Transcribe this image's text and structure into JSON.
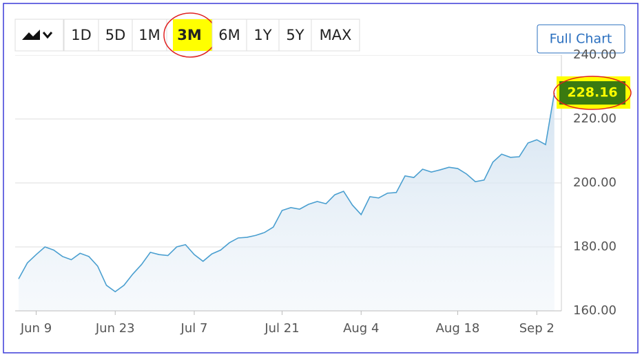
{
  "toolbar": {
    "ranges": [
      "1D",
      "5D",
      "1M",
      "3M",
      "6M",
      "1Y",
      "5Y",
      "MAX"
    ],
    "full_chart": "Full Chart"
  },
  "chart_data": {
    "type": "area",
    "categories": [
      null,
      null,
      "Jun 9",
      null,
      null,
      null,
      null,
      null,
      null,
      null,
      null,
      "Jun 23",
      null,
      null,
      null,
      null,
      null,
      null,
      null,
      null,
      "Jul 7",
      null,
      null,
      null,
      null,
      null,
      null,
      null,
      null,
      null,
      "Jul 21",
      null,
      null,
      null,
      null,
      null,
      null,
      null,
      null,
      "Aug 4",
      null,
      null,
      null,
      null,
      null,
      null,
      null,
      null,
      null,
      null,
      "Aug 18",
      null,
      null,
      null,
      null,
      null,
      null,
      null,
      null,
      "Sep 2",
      null,
      null
    ],
    "values": [
      170,
      175,
      177.6,
      180,
      179,
      177,
      176,
      178,
      177,
      174,
      168,
      166,
      168,
      171.5,
      174.5,
      178.3,
      177.6,
      177.3,
      180,
      180.7,
      177.6,
      175.5,
      177.8,
      179,
      181.3,
      182.8,
      183,
      183.6,
      184.5,
      186.2,
      191.4,
      192.3,
      191.8,
      193.3,
      194.2,
      193.5,
      196.3,
      197.4,
      193.1,
      190.1,
      195.7,
      195.3,
      196.8,
      197,
      202.2,
      201.7,
      204.3,
      203.4,
      204.1,
      204.9,
      204.5,
      202.8,
      200.4,
      200.9,
      206.5,
      209,
      208,
      208.2,
      212.5,
      213.5,
      212,
      228.16
    ],
    "color": "#4a9fd0",
    "ylim": [
      160,
      240
    ],
    "yticks": [
      {
        "value": 160,
        "label": "160.00"
      },
      {
        "value": 180,
        "label": "180.00"
      },
      {
        "value": 200,
        "label": "200.00"
      },
      {
        "value": 220,
        "label": "220.00"
      },
      {
        "value": 240,
        "label": "240.00"
      }
    ],
    "grid": true
  }
}
